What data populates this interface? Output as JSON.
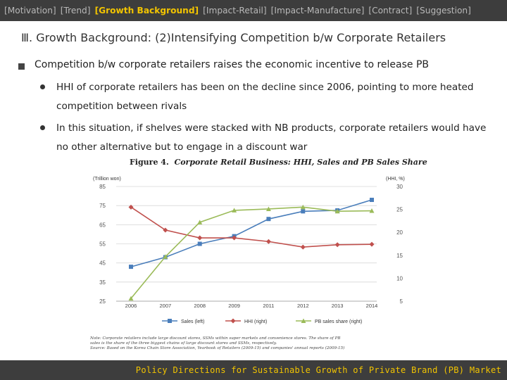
{
  "nav": {
    "tabs": [
      {
        "label": "[Motivation]",
        "active": false
      },
      {
        "label": "[Trend]",
        "active": false
      },
      {
        "label": "[Growth Background]",
        "active": true
      },
      {
        "label": "[Impact-Retail]",
        "active": false
      },
      {
        "label": "[Impact-Manufacture]",
        "active": false
      },
      {
        "label": "[Contract]",
        "active": false
      },
      {
        "label": "[Suggestion]",
        "active": false
      }
    ]
  },
  "slide": {
    "title": "Ⅲ. Growth Background: (2)Intensifying Competition b/w Corporate Retailers",
    "point": "Competition b/w corporate retailers raises the economic incentive to release PB",
    "sub_points": [
      {
        "line1": "HHI of corporate retailers has been on the decline since 2006, pointing to more heated",
        "line2": "competition between rivals"
      },
      {
        "line1": "In this situation, if shelves were stacked with NB products, corporate retailers would have",
        "line2": "no other alternative but to engage in a discount war"
      }
    ]
  },
  "figure": {
    "label": "Figure 4.",
    "caption": "Corporate Retail Business: HHI, Sales and PB Sales Share",
    "notes": [
      "Note: Corporate retailers include large discount stores, SSMs within super markets and convenience stores. The share of PB",
      "sales is the share of the three biggest chains of large discount stores and SSMs, respectively.",
      "Source: Based on the Korea Chain Store Association, Yearbook of Retailers (2009-15) and companies' annual reports (2009-15)"
    ]
  },
  "chart_data": {
    "type": "line",
    "x": [
      "2006",
      "2007",
      "2008",
      "2009",
      "2011",
      "2012",
      "2013",
      "2014"
    ],
    "y_left_label": "(Trillion won)",
    "y_left_lim": [
      25,
      85
    ],
    "y_left_ticks": [
      "85",
      "75",
      "65",
      "55",
      "45",
      "35",
      "25"
    ],
    "y_right_label": "(HHI, %)",
    "y_right_lim": [
      5,
      30
    ],
    "y_right_ticks": [
      "30",
      "25",
      "20",
      "15",
      "10",
      "5"
    ],
    "legend_position": "bottom",
    "series": [
      {
        "name": "Sales (left)",
        "axis": "left",
        "color": "#4a7ebb",
        "marker": "square",
        "values": [
          43,
          48,
          55,
          59,
          68,
          72,
          72.5,
          78
        ]
      },
      {
        "name": "HHI (right)",
        "axis": "right",
        "color": "#c0504d",
        "marker": "diamond",
        "values": [
          25.5,
          20.5,
          18.8,
          18.8,
          18,
          16.8,
          17.3,
          17.4
        ]
      },
      {
        "name": "PB sales share (right)",
        "axis": "right",
        "color": "#9bbb59",
        "marker": "triangle",
        "values": [
          5.6,
          14.7,
          22.2,
          24.8,
          25.1,
          25.5,
          24.6,
          24.7
        ]
      }
    ]
  },
  "footer": {
    "text": "Policy Directions for Sustainable Growth of Private Brand (PB) Market"
  }
}
